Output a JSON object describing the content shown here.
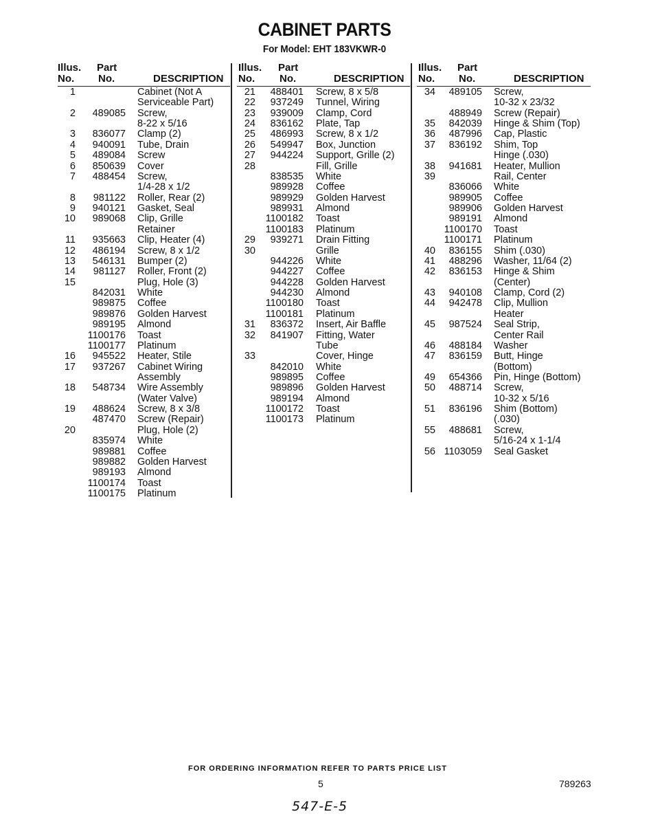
{
  "title": "CABINET PARTS",
  "subtitle": "For Model: EHT 183VKWR-0",
  "headers": {
    "illus": [
      "Illus.",
      "No."
    ],
    "part": [
      "Part",
      "No."
    ],
    "description": "DESCRIPTION"
  },
  "columns": [
    [
      [
        "1",
        "",
        "Cabinet (Not A"
      ],
      [
        "",
        "",
        "Serviceable Part)"
      ],
      [
        "2",
        "489085",
        "Screw,"
      ],
      [
        "",
        "",
        "8-22 x 5/16"
      ],
      [
        "3",
        "836077",
        "Clamp (2)"
      ],
      [
        "4",
        "940091",
        "Tube, Drain"
      ],
      [
        "5",
        "489084",
        "Screw"
      ],
      [
        "6",
        "850639",
        "Cover"
      ],
      [
        "7",
        "488454",
        "Screw,"
      ],
      [
        "",
        "",
        "1/4-28 x 1/2"
      ],
      [
        "8",
        "981122",
        "Roller, Rear (2)"
      ],
      [
        "9",
        "940121",
        "Gasket, Seal"
      ],
      [
        "10",
        "989068",
        "Clip, Grille"
      ],
      [
        "",
        "",
        "Retainer"
      ],
      [
        "11",
        "935663",
        "Clip, Heater (4)"
      ],
      [
        "12",
        "486194",
        "Screw, 8 x 1/2"
      ],
      [
        "13",
        "546131",
        "Bumper (2)"
      ],
      [
        "14",
        "981127",
        "Roller, Front (2)"
      ],
      [
        "15",
        "",
        "Plug, Hole (3)"
      ],
      [
        "",
        "842031",
        "White"
      ],
      [
        "",
        "989875",
        "Coffee"
      ],
      [
        "",
        "989876",
        "Golden Harvest"
      ],
      [
        "",
        "989195",
        "Almond"
      ],
      [
        "",
        "1100176",
        "Toast"
      ],
      [
        "",
        "1100177",
        "Platinum"
      ],
      [
        "16",
        "945522",
        "Heater, Stile"
      ],
      [
        "17",
        "937267",
        "Cabinet Wiring"
      ],
      [
        "",
        "",
        "Assembly"
      ],
      [
        "18",
        "548734",
        "Wire Assembly"
      ],
      [
        "",
        "",
        "(Water Valve)"
      ],
      [
        "19",
        "488624",
        "Screw, 8 x 3/8"
      ],
      [
        "",
        "487470",
        "Screw (Repair)"
      ],
      [
        "20",
        "",
        "Plug, Hole (2)"
      ],
      [
        "",
        "835974",
        "White"
      ],
      [
        "",
        "989881",
        "Coffee"
      ],
      [
        "",
        "989882",
        "Golden Harvest"
      ],
      [
        "",
        "989193",
        "Almond"
      ],
      [
        "",
        "1100174",
        "Toast"
      ],
      [
        "",
        "1100175",
        "Platinum"
      ]
    ],
    [
      [
        "21",
        "488401",
        "Screw, 8 x 5/8"
      ],
      [
        "22",
        "937249",
        "Tunnel, Wiring"
      ],
      [
        "23",
        "939009",
        "Clamp, Cord"
      ],
      [
        "24",
        "836162",
        "Plate, Tap"
      ],
      [
        "25",
        "486993",
        "Screw, 8 x 1/2"
      ],
      [
        "26",
        "549947",
        "Box, Junction"
      ],
      [
        "27",
        "944224",
        "Support, Grille (2)"
      ],
      [
        "28",
        "",
        "Fill, Grille"
      ],
      [
        "",
        "838535",
        "White"
      ],
      [
        "",
        "989928",
        "Coffee"
      ],
      [
        "",
        "989929",
        "Golden Harvest"
      ],
      [
        "",
        "989931",
        "Almond"
      ],
      [
        "",
        "1100182",
        "Toast"
      ],
      [
        "",
        "1100183",
        "Platinum"
      ],
      [
        "29",
        "939271",
        "Drain Fitting"
      ],
      [
        "30",
        "",
        "Grille"
      ],
      [
        "",
        "944226",
        "White"
      ],
      [
        "",
        "944227",
        "Coffee"
      ],
      [
        "",
        "944228",
        "Golden Harvest"
      ],
      [
        "",
        "944230",
        "Almond"
      ],
      [
        "",
        "1100180",
        "Toast"
      ],
      [
        "",
        "1100181",
        "Platinum"
      ],
      [
        "31",
        "836372",
        "Insert, Air Baffle"
      ],
      [
        "32",
        "841907",
        "Fitting, Water"
      ],
      [
        "",
        "",
        "Tube"
      ],
      [
        "33",
        "",
        "Cover, Hinge"
      ],
      [
        "",
        "842010",
        "White"
      ],
      [
        "",
        "989895",
        "Coffee"
      ],
      [
        "",
        "989896",
        "Golden Harvest"
      ],
      [
        "",
        "989194",
        "Almond"
      ],
      [
        "",
        "1100172",
        "Toast"
      ],
      [
        "",
        "1100173",
        "Platinum"
      ]
    ],
    [
      [
        "34",
        "489105",
        "Screw,"
      ],
      [
        "",
        "",
        "10-32 x 23/32"
      ],
      [
        "",
        "488949",
        "Screw (Repair)"
      ],
      [
        "35",
        "842039",
        "Hinge & Shim (Top)"
      ],
      [
        "36",
        "487996",
        "Cap, Plastic"
      ],
      [
        "37",
        "836192",
        "Shim, Top"
      ],
      [
        "",
        "",
        "Hinge (.030)"
      ],
      [
        "38",
        "941681",
        "Heater, Mullion"
      ],
      [
        "39",
        "",
        "Rail, Center"
      ],
      [
        "",
        "836066",
        "White"
      ],
      [
        "",
        "989905",
        "Coffee"
      ],
      [
        "",
        "989906",
        "Golden Harvest"
      ],
      [
        "",
        "989191",
        "Almond"
      ],
      [
        "",
        "1100170",
        "Toast"
      ],
      [
        "",
        "1100171",
        "Platinum"
      ],
      [
        "40",
        "836155",
        "Shim (.030)"
      ],
      [
        "41",
        "488296",
        "Washer, 11/64 (2)"
      ],
      [
        "42",
        "836153",
        "Hinge & Shim"
      ],
      [
        "",
        "",
        "(Center)"
      ],
      [
        "43",
        "940108",
        "Clamp, Cord (2)"
      ],
      [
        "44",
        "942478",
        "Clip, Mullion"
      ],
      [
        "",
        "",
        "Heater"
      ],
      [
        "45",
        "987524",
        "Seal Strip,"
      ],
      [
        "",
        "",
        "Center Rail"
      ],
      [
        "46",
        "488184",
        "Washer"
      ],
      [
        "47",
        "836159",
        "Butt, Hinge"
      ],
      [
        "",
        "",
        "(Bottom)"
      ],
      [
        "49",
        "654366",
        "Pin, Hinge (Bottom)"
      ],
      [
        "50",
        "488714",
        "Screw,"
      ],
      [
        "",
        "",
        "10-32 x 5/16"
      ],
      [
        "51",
        "836196",
        "Shim (Bottom)"
      ],
      [
        "",
        "",
        "(.030)"
      ],
      [
        "55",
        "488681",
        "Screw,"
      ],
      [
        "",
        "",
        "5/16-24 x 1-1/4"
      ],
      [
        "56",
        "1103059",
        "Seal Gasket"
      ]
    ]
  ],
  "footer": {
    "note": "FOR ORDERING INFORMATION REFER TO PARTS PRICE LIST",
    "page_number": "5",
    "document_number": "789263",
    "handwritten": "547-E-5"
  }
}
